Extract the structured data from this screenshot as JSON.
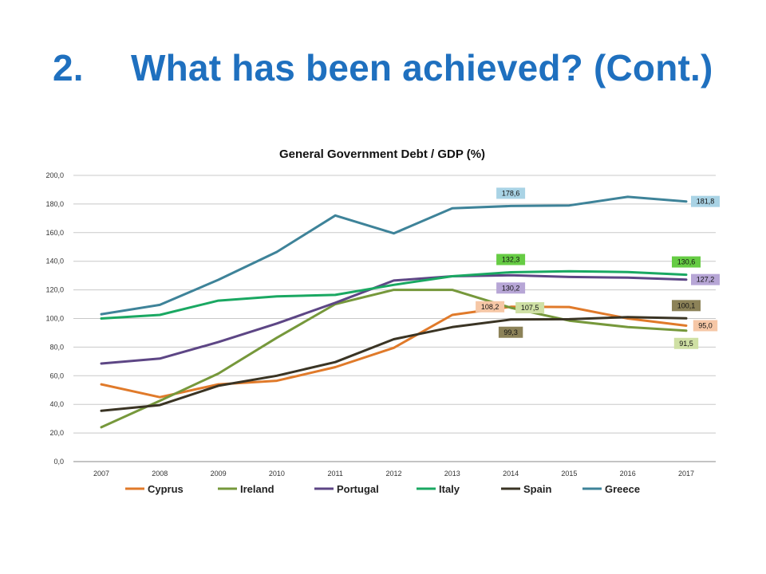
{
  "slide": {
    "number": "2.",
    "title": "What has been achieved? (Cont.)"
  },
  "chart_data": {
    "type": "line",
    "title": "General Government Debt / GDP (%)",
    "xlabel": "",
    "ylabel": "",
    "x": [
      "2007",
      "2008",
      "2009",
      "2010",
      "2011",
      "2012",
      "2013",
      "2014",
      "2015",
      "2016",
      "2017"
    ],
    "ylim": [
      0,
      200
    ],
    "yticks": [
      "0,0",
      "20,0",
      "40,0",
      "60,0",
      "80,0",
      "100,0",
      "120,0",
      "140,0",
      "160,0",
      "180,0",
      "200,0"
    ],
    "grid": true,
    "legend_position": "bottom",
    "series": [
      {
        "name": "Cyprus",
        "color": "#e07a2a",
        "values": [
          54.0,
          45.0,
          54.0,
          56.5,
          66.0,
          79.5,
          102.5,
          108.2,
          108.0,
          100.0,
          95.0
        ]
      },
      {
        "name": "Ireland",
        "color": "#76983b",
        "values": [
          24.0,
          42.5,
          61.5,
          86.5,
          110.0,
          120.0,
          120.0,
          107.5,
          98.5,
          94.0,
          91.5
        ]
      },
      {
        "name": "Portugal",
        "color": "#5d4685",
        "values": [
          68.5,
          72.0,
          83.5,
          96.5,
          111.0,
          126.5,
          129.5,
          130.2,
          129.0,
          128.5,
          127.2
        ]
      },
      {
        "name": "Italy",
        "color": "#1aa862",
        "values": [
          100.0,
          102.5,
          112.5,
          115.5,
          116.5,
          123.5,
          129.5,
          132.3,
          133.0,
          132.5,
          130.6
        ]
      },
      {
        "name": "Spain",
        "color": "#3a3424",
        "values": [
          35.5,
          39.5,
          53.0,
          60.0,
          69.5,
          85.5,
          94.0,
          99.3,
          99.5,
          101.0,
          100.1
        ]
      },
      {
        "name": "Greece",
        "color": "#3e8399",
        "values": [
          103.0,
          109.5,
          127.0,
          146.5,
          172.0,
          159.5,
          177.0,
          178.6,
          179.0,
          185.0,
          181.8
        ]
      }
    ],
    "data_labels": [
      {
        "series": "Greece",
        "x": "2014",
        "text": "178,6",
        "bg": "#a9d3e5",
        "pos": "above"
      },
      {
        "series": "Greece",
        "x": "2017",
        "text": "181,8",
        "bg": "#a9d3e5",
        "pos": "right"
      },
      {
        "series": "Italy",
        "x": "2014",
        "text": "132,3",
        "bg": "#66cc44",
        "pos": "above"
      },
      {
        "series": "Italy",
        "x": "2017",
        "text": "130,6",
        "bg": "#66cc44",
        "pos": "above"
      },
      {
        "series": "Portugal",
        "x": "2014",
        "text": "130,2",
        "bg": "#b7a6d6",
        "pos": "below"
      },
      {
        "series": "Portugal",
        "x": "2017",
        "text": "127,2",
        "bg": "#b7a6d6",
        "pos": "right"
      },
      {
        "series": "Cyprus",
        "x": "2014",
        "text": "108,2",
        "bg": "#f6c7a6",
        "pos": "left"
      },
      {
        "series": "Cyprus",
        "x": "2017",
        "text": "95,0",
        "bg": "#f6c7a6",
        "pos": "right"
      },
      {
        "series": "Ireland",
        "x": "2014",
        "text": "107,5",
        "bg": "#cfe0a4",
        "pos": "right"
      },
      {
        "series": "Ireland",
        "x": "2017",
        "text": "91,5",
        "bg": "#cfe0a4",
        "pos": "below"
      },
      {
        "series": "Spain",
        "x": "2014",
        "text": "99,3",
        "bg": "#8c8258",
        "pos": "below"
      },
      {
        "series": "Spain",
        "x": "2017",
        "text": "100,1",
        "bg": "#8c8258",
        "pos": "above"
      }
    ]
  }
}
